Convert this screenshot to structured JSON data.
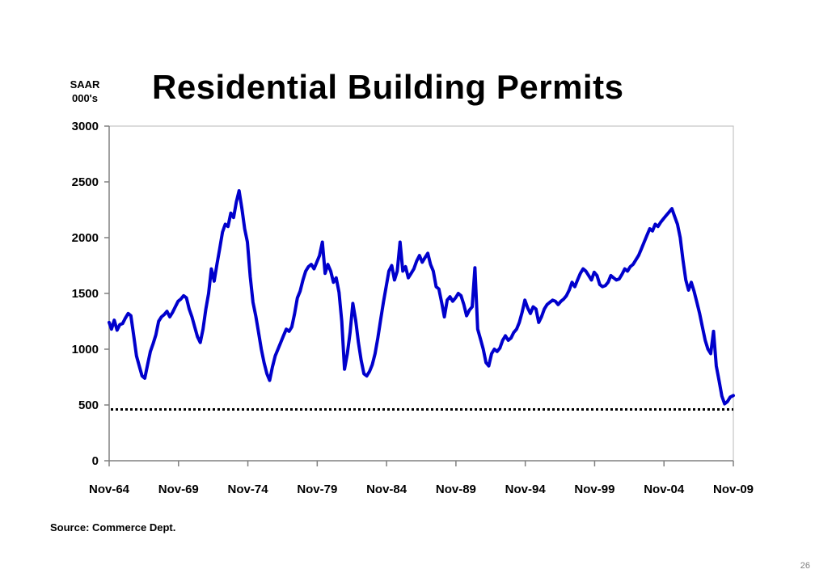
{
  "chart_data": {
    "type": "line",
    "title": "Residential Building Permits",
    "ylabel_lines": [
      "SAAR",
      "000's"
    ],
    "source": "Source: Commerce Dept.",
    "x_tick_labels": [
      "Nov-64",
      "Nov-69",
      "Nov-74",
      "Nov-79",
      "Nov-84",
      "Nov-89",
      "Nov-94",
      "Nov-99",
      "Nov-04",
      "Nov-09"
    ],
    "y_tick_labels": [
      "0",
      "500",
      "1000",
      "1500",
      "2000",
      "2500",
      "3000"
    ],
    "ylim": [
      0,
      3000
    ],
    "xlim": [
      1964.83,
      2009.83
    ],
    "grid": false,
    "line_color": "#0000cc",
    "reference_line": {
      "value": 460,
      "style": "dotted",
      "color": "#000000"
    },
    "series": [
      {
        "values": [
          [
            1964.83,
            1240
          ],
          [
            1965.0,
            1180
          ],
          [
            1965.2,
            1260
          ],
          [
            1965.4,
            1170
          ],
          [
            1965.6,
            1220
          ],
          [
            1965.8,
            1230
          ],
          [
            1966.0,
            1280
          ],
          [
            1966.2,
            1320
          ],
          [
            1966.4,
            1300
          ],
          [
            1966.6,
            1120
          ],
          [
            1966.8,
            940
          ],
          [
            1967.0,
            850
          ],
          [
            1967.2,
            760
          ],
          [
            1967.4,
            740
          ],
          [
            1967.6,
            860
          ],
          [
            1967.8,
            980
          ],
          [
            1968.0,
            1050
          ],
          [
            1968.2,
            1130
          ],
          [
            1968.4,
            1250
          ],
          [
            1968.6,
            1290
          ],
          [
            1968.8,
            1310
          ],
          [
            1969.0,
            1340
          ],
          [
            1969.2,
            1290
          ],
          [
            1969.4,
            1330
          ],
          [
            1969.6,
            1380
          ],
          [
            1969.8,
            1430
          ],
          [
            1970.0,
            1450
          ],
          [
            1970.2,
            1480
          ],
          [
            1970.4,
            1460
          ],
          [
            1970.6,
            1360
          ],
          [
            1970.8,
            1290
          ],
          [
            1971.0,
            1200
          ],
          [
            1971.2,
            1110
          ],
          [
            1971.4,
            1060
          ],
          [
            1971.6,
            1180
          ],
          [
            1971.8,
            1360
          ],
          [
            1972.0,
            1500
          ],
          [
            1972.2,
            1720
          ],
          [
            1972.4,
            1610
          ],
          [
            1972.6,
            1760
          ],
          [
            1972.8,
            1900
          ],
          [
            1973.0,
            2050
          ],
          [
            1973.2,
            2120
          ],
          [
            1973.4,
            2100
          ],
          [
            1973.6,
            2220
          ],
          [
            1973.8,
            2180
          ],
          [
            1974.0,
            2320
          ],
          [
            1974.2,
            2420
          ],
          [
            1974.4,
            2260
          ],
          [
            1974.6,
            2080
          ],
          [
            1974.8,
            1960
          ],
          [
            1975.0,
            1650
          ],
          [
            1975.2,
            1420
          ],
          [
            1975.4,
            1300
          ],
          [
            1975.6,
            1150
          ],
          [
            1975.8,
            1000
          ],
          [
            1976.0,
            880
          ],
          [
            1976.2,
            780
          ],
          [
            1976.4,
            720
          ],
          [
            1976.6,
            840
          ],
          [
            1976.8,
            940
          ],
          [
            1977.0,
            1000
          ],
          [
            1977.2,
            1060
          ],
          [
            1977.4,
            1120
          ],
          [
            1977.6,
            1180
          ],
          [
            1977.8,
            1160
          ],
          [
            1978.0,
            1200
          ],
          [
            1978.2,
            1320
          ],
          [
            1978.4,
            1460
          ],
          [
            1978.6,
            1520
          ],
          [
            1978.8,
            1620
          ],
          [
            1979.0,
            1700
          ],
          [
            1979.2,
            1740
          ],
          [
            1979.4,
            1760
          ],
          [
            1979.6,
            1720
          ],
          [
            1979.8,
            1780
          ],
          [
            1980.0,
            1840
          ],
          [
            1980.2,
            1960
          ],
          [
            1980.4,
            1680
          ],
          [
            1980.6,
            1760
          ],
          [
            1980.8,
            1700
          ],
          [
            1981.0,
            1600
          ],
          [
            1981.2,
            1640
          ],
          [
            1981.4,
            1510
          ],
          [
            1981.6,
            1250
          ],
          [
            1981.8,
            820
          ],
          [
            1982.0,
            960
          ],
          [
            1982.2,
            1150
          ],
          [
            1982.4,
            1410
          ],
          [
            1982.6,
            1260
          ],
          [
            1982.8,
            1060
          ],
          [
            1983.0,
            900
          ],
          [
            1983.2,
            780
          ],
          [
            1983.4,
            760
          ],
          [
            1983.6,
            800
          ],
          [
            1983.8,
            860
          ],
          [
            1984.0,
            960
          ],
          [
            1984.2,
            1100
          ],
          [
            1984.4,
            1260
          ],
          [
            1984.6,
            1420
          ],
          [
            1984.8,
            1560
          ],
          [
            1985.0,
            1700
          ],
          [
            1985.2,
            1750
          ],
          [
            1985.4,
            1620
          ],
          [
            1985.6,
            1700
          ],
          [
            1985.8,
            1960
          ],
          [
            1986.0,
            1700
          ],
          [
            1986.2,
            1740
          ],
          [
            1986.4,
            1640
          ],
          [
            1986.6,
            1680
          ],
          [
            1986.8,
            1720
          ],
          [
            1987.0,
            1790
          ],
          [
            1987.2,
            1840
          ],
          [
            1987.4,
            1780
          ],
          [
            1987.6,
            1820
          ],
          [
            1987.8,
            1860
          ],
          [
            1988.0,
            1760
          ],
          [
            1988.2,
            1700
          ],
          [
            1988.4,
            1560
          ],
          [
            1988.6,
            1540
          ],
          [
            1988.8,
            1420
          ],
          [
            1989.0,
            1290
          ],
          [
            1989.2,
            1440
          ],
          [
            1989.4,
            1470
          ],
          [
            1989.6,
            1430
          ],
          [
            1989.8,
            1460
          ],
          [
            1990.0,
            1500
          ],
          [
            1990.2,
            1480
          ],
          [
            1990.4,
            1400
          ],
          [
            1990.6,
            1300
          ],
          [
            1990.8,
            1350
          ],
          [
            1991.0,
            1380
          ],
          [
            1991.2,
            1730
          ],
          [
            1991.4,
            1180
          ],
          [
            1991.6,
            1090
          ],
          [
            1991.8,
            1000
          ],
          [
            1992.0,
            880
          ],
          [
            1992.2,
            850
          ],
          [
            1992.4,
            960
          ],
          [
            1992.6,
            1000
          ],
          [
            1992.8,
            980
          ],
          [
            1993.0,
            1010
          ],
          [
            1993.2,
            1080
          ],
          [
            1993.4,
            1120
          ],
          [
            1993.6,
            1080
          ],
          [
            1993.8,
            1100
          ],
          [
            1994.0,
            1150
          ],
          [
            1994.2,
            1180
          ],
          [
            1994.4,
            1240
          ],
          [
            1994.6,
            1330
          ],
          [
            1994.8,
            1440
          ],
          [
            1995.0,
            1370
          ],
          [
            1995.2,
            1320
          ],
          [
            1995.4,
            1380
          ],
          [
            1995.6,
            1360
          ],
          [
            1995.8,
            1240
          ],
          [
            1996.0,
            1290
          ],
          [
            1996.2,
            1360
          ],
          [
            1996.4,
            1400
          ],
          [
            1996.6,
            1420
          ],
          [
            1996.8,
            1440
          ],
          [
            1997.0,
            1430
          ],
          [
            1997.2,
            1400
          ],
          [
            1997.4,
            1430
          ],
          [
            1997.6,
            1450
          ],
          [
            1997.8,
            1480
          ],
          [
            1998.0,
            1530
          ],
          [
            1998.2,
            1600
          ],
          [
            1998.4,
            1560
          ],
          [
            1998.6,
            1620
          ],
          [
            1998.8,
            1680
          ],
          [
            1999.0,
            1720
          ],
          [
            1999.2,
            1700
          ],
          [
            1999.4,
            1660
          ],
          [
            1999.6,
            1620
          ],
          [
            1999.8,
            1690
          ],
          [
            2000.0,
            1660
          ],
          [
            2000.2,
            1580
          ],
          [
            2000.4,
            1560
          ],
          [
            2000.6,
            1570
          ],
          [
            2000.8,
            1600
          ],
          [
            2001.0,
            1660
          ],
          [
            2001.2,
            1640
          ],
          [
            2001.4,
            1620
          ],
          [
            2001.6,
            1630
          ],
          [
            2001.8,
            1670
          ],
          [
            2002.0,
            1720
          ],
          [
            2002.2,
            1700
          ],
          [
            2002.4,
            1740
          ],
          [
            2002.6,
            1760
          ],
          [
            2002.8,
            1800
          ],
          [
            2003.0,
            1840
          ],
          [
            2003.2,
            1900
          ],
          [
            2003.4,
            1960
          ],
          [
            2003.6,
            2020
          ],
          [
            2003.8,
            2080
          ],
          [
            2004.0,
            2060
          ],
          [
            2004.2,
            2120
          ],
          [
            2004.4,
            2100
          ],
          [
            2004.6,
            2140
          ],
          [
            2004.8,
            2170
          ],
          [
            2005.0,
            2200
          ],
          [
            2005.2,
            2230
          ],
          [
            2005.4,
            2260
          ],
          [
            2005.6,
            2190
          ],
          [
            2005.8,
            2120
          ],
          [
            2006.0,
            2000
          ],
          [
            2006.2,
            1800
          ],
          [
            2006.4,
            1620
          ],
          [
            2006.6,
            1530
          ],
          [
            2006.8,
            1600
          ],
          [
            2007.0,
            1520
          ],
          [
            2007.2,
            1420
          ],
          [
            2007.4,
            1320
          ],
          [
            2007.6,
            1200
          ],
          [
            2007.8,
            1080
          ],
          [
            2008.0,
            1000
          ],
          [
            2008.2,
            960
          ],
          [
            2008.4,
            1160
          ],
          [
            2008.6,
            850
          ],
          [
            2008.8,
            720
          ],
          [
            2009.0,
            580
          ],
          [
            2009.2,
            510
          ],
          [
            2009.4,
            530
          ],
          [
            2009.6,
            570
          ],
          [
            2009.83,
            585
          ]
        ]
      }
    ]
  }
}
